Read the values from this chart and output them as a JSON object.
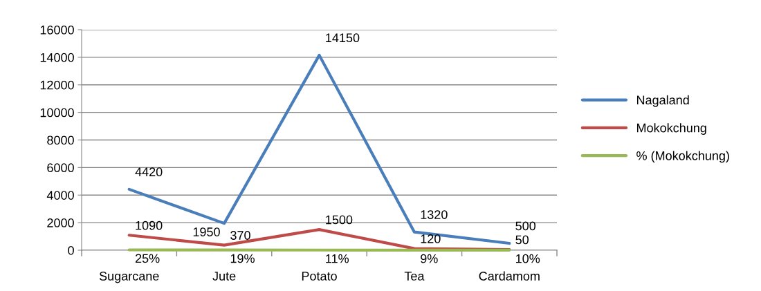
{
  "chart_data": {
    "type": "line",
    "categories": [
      "Sugarcane",
      "Jute",
      "Potato",
      "Tea",
      "Cardamom"
    ],
    "series": [
      {
        "name": "Nagaland",
        "color": "#4a7ebb",
        "values": [
          4420,
          1950,
          14150,
          1320,
          500
        ]
      },
      {
        "name": "Mokokchung",
        "color": "#be4b48",
        "values": [
          1090,
          370,
          1500,
          120,
          50
        ]
      },
      {
        "name": "% (Mokokchung)",
        "color": "#98b954",
        "values": [
          25,
          19,
          11,
          9,
          10
        ],
        "value_labels": [
          "25%",
          "19%",
          "11%",
          "9%",
          "10%"
        ]
      }
    ],
    "data_labels": true,
    "ylim": [
      0,
      16000
    ],
    "yticks": [
      0,
      2000,
      4000,
      6000,
      8000,
      10000,
      12000,
      14000,
      16000
    ],
    "grid": "y",
    "legend": "right",
    "marker": "none",
    "line_style": "solid"
  }
}
